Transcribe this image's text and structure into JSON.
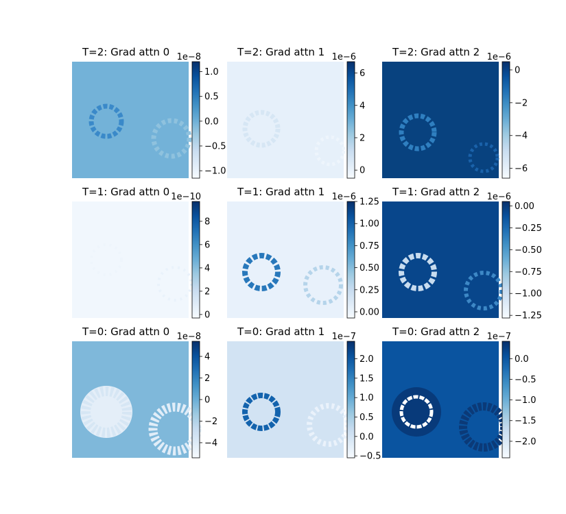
{
  "chart_data": [
    {
      "type": "heatmap",
      "title": "T=2: Grad attn 0",
      "colormap": "Blues",
      "background_color": "#73b2d8",
      "colorbar": {
        "offset": "1e−8",
        "ticks": [
          {
            "value": 1.0,
            "label": "1.0"
          },
          {
            "value": 0.5,
            "label": "0.5"
          },
          {
            "value": 0.0,
            "label": "0.0"
          },
          {
            "value": -0.5,
            "label": "−0.5"
          },
          {
            "value": -1.0,
            "label": "−1.0"
          }
        ],
        "range": [
          -1.15,
          1.2
        ]
      }
    },
    {
      "type": "heatmap",
      "title": "T=2: Grad attn 1",
      "colormap": "Blues",
      "background_color": "#e6f0fa",
      "colorbar": {
        "offset": "1e−6",
        "ticks": [
          {
            "value": 6,
            "label": "6"
          },
          {
            "value": 4,
            "label": "4"
          },
          {
            "value": 2,
            "label": "2"
          },
          {
            "value": 0,
            "label": "0"
          }
        ],
        "range": [
          -0.5,
          6.7
        ]
      }
    },
    {
      "type": "heatmap",
      "title": "T=2: Grad attn 2",
      "colormap": "Blues",
      "background_color": "#08427f",
      "colorbar": {
        "offset": "1e−6",
        "ticks": [
          {
            "value": 0,
            "label": "0"
          },
          {
            "value": -2,
            "label": "−2"
          },
          {
            "value": -4,
            "label": "−4"
          },
          {
            "value": -6,
            "label": "−6"
          }
        ],
        "range": [
          -6.6,
          0.5
        ]
      }
    },
    {
      "type": "heatmap",
      "title": "T=1: Grad attn 0",
      "colormap": "Blues",
      "background_color": "#f1f7fd",
      "colorbar": {
        "offset": "1e−10",
        "ticks": [
          {
            "value": 8,
            "label": "8"
          },
          {
            "value": 6,
            "label": "6"
          },
          {
            "value": 4,
            "label": "4"
          },
          {
            "value": 2,
            "label": "2"
          },
          {
            "value": 0,
            "label": "0"
          }
        ],
        "range": [
          -0.3,
          9.7
        ]
      }
    },
    {
      "type": "heatmap",
      "title": "T=1: Grad attn 1",
      "colormap": "Blues",
      "background_color": "#e8f1fb",
      "colorbar": {
        "offset": "1e−6",
        "ticks": [
          {
            "value": 1.25,
            "label": "1.25"
          },
          {
            "value": 1.0,
            "label": "1.00"
          },
          {
            "value": 0.75,
            "label": "0.75"
          },
          {
            "value": 0.5,
            "label": "0.50"
          },
          {
            "value": 0.25,
            "label": "0.25"
          },
          {
            "value": 0.0,
            "label": "0.00"
          }
        ],
        "range": [
          -0.07,
          1.25
        ]
      }
    },
    {
      "type": "heatmap",
      "title": "T=1: Grad attn 2",
      "colormap": "Blues",
      "background_color": "#08468b",
      "colorbar": {
        "offset": "1e−6",
        "ticks": [
          {
            "value": 0.0,
            "label": "0.00"
          },
          {
            "value": -0.25,
            "label": "−0.25"
          },
          {
            "value": -0.5,
            "label": "−0.50"
          },
          {
            "value": -0.75,
            "label": "−0.75"
          },
          {
            "value": -1.0,
            "label": "−1.00"
          },
          {
            "value": -1.25,
            "label": "−1.25"
          }
        ],
        "range": [
          -1.28,
          0.05
        ]
      }
    },
    {
      "type": "heatmap",
      "title": "T=0: Grad attn 0",
      "colormap": "Blues",
      "background_color": "#7fb8da",
      "colorbar": {
        "offset": "1e−8",
        "ticks": [
          {
            "value": 4,
            "label": "4"
          },
          {
            "value": 2,
            "label": "2"
          },
          {
            "value": 0,
            "label": "0"
          },
          {
            "value": -2,
            "label": "−2"
          },
          {
            "value": -4,
            "label": "−4"
          }
        ],
        "range": [
          -5.4,
          5.4
        ]
      }
    },
    {
      "type": "heatmap",
      "title": "T=0: Grad attn 1",
      "colormap": "Blues",
      "background_color": "#d2e3f3",
      "colorbar": {
        "offset": "1e−7",
        "ticks": [
          {
            "value": 2.0,
            "label": "2.0"
          },
          {
            "value": 1.5,
            "label": "1.5"
          },
          {
            "value": 1.0,
            "label": "1.0"
          },
          {
            "value": 0.5,
            "label": "0.5"
          },
          {
            "value": 0.0,
            "label": "0.0"
          },
          {
            "value": -0.5,
            "label": "−0.5"
          }
        ],
        "range": [
          -0.55,
          2.45
        ]
      }
    },
    {
      "type": "heatmap",
      "title": "T=0: Grad attn 2",
      "colormap": "Blues",
      "background_color": "#0a54a0",
      "colorbar": {
        "offset": "1e−7",
        "ticks": [
          {
            "value": 0.0,
            "label": "0.0"
          },
          {
            "value": -0.5,
            "label": "−0.5"
          },
          {
            "value": -1.0,
            "label": "−1.0"
          },
          {
            "value": -1.5,
            "label": "−1.5"
          },
          {
            "value": -2.0,
            "label": "−2.0"
          }
        ],
        "range": [
          -2.4,
          0.42
        ]
      }
    }
  ]
}
